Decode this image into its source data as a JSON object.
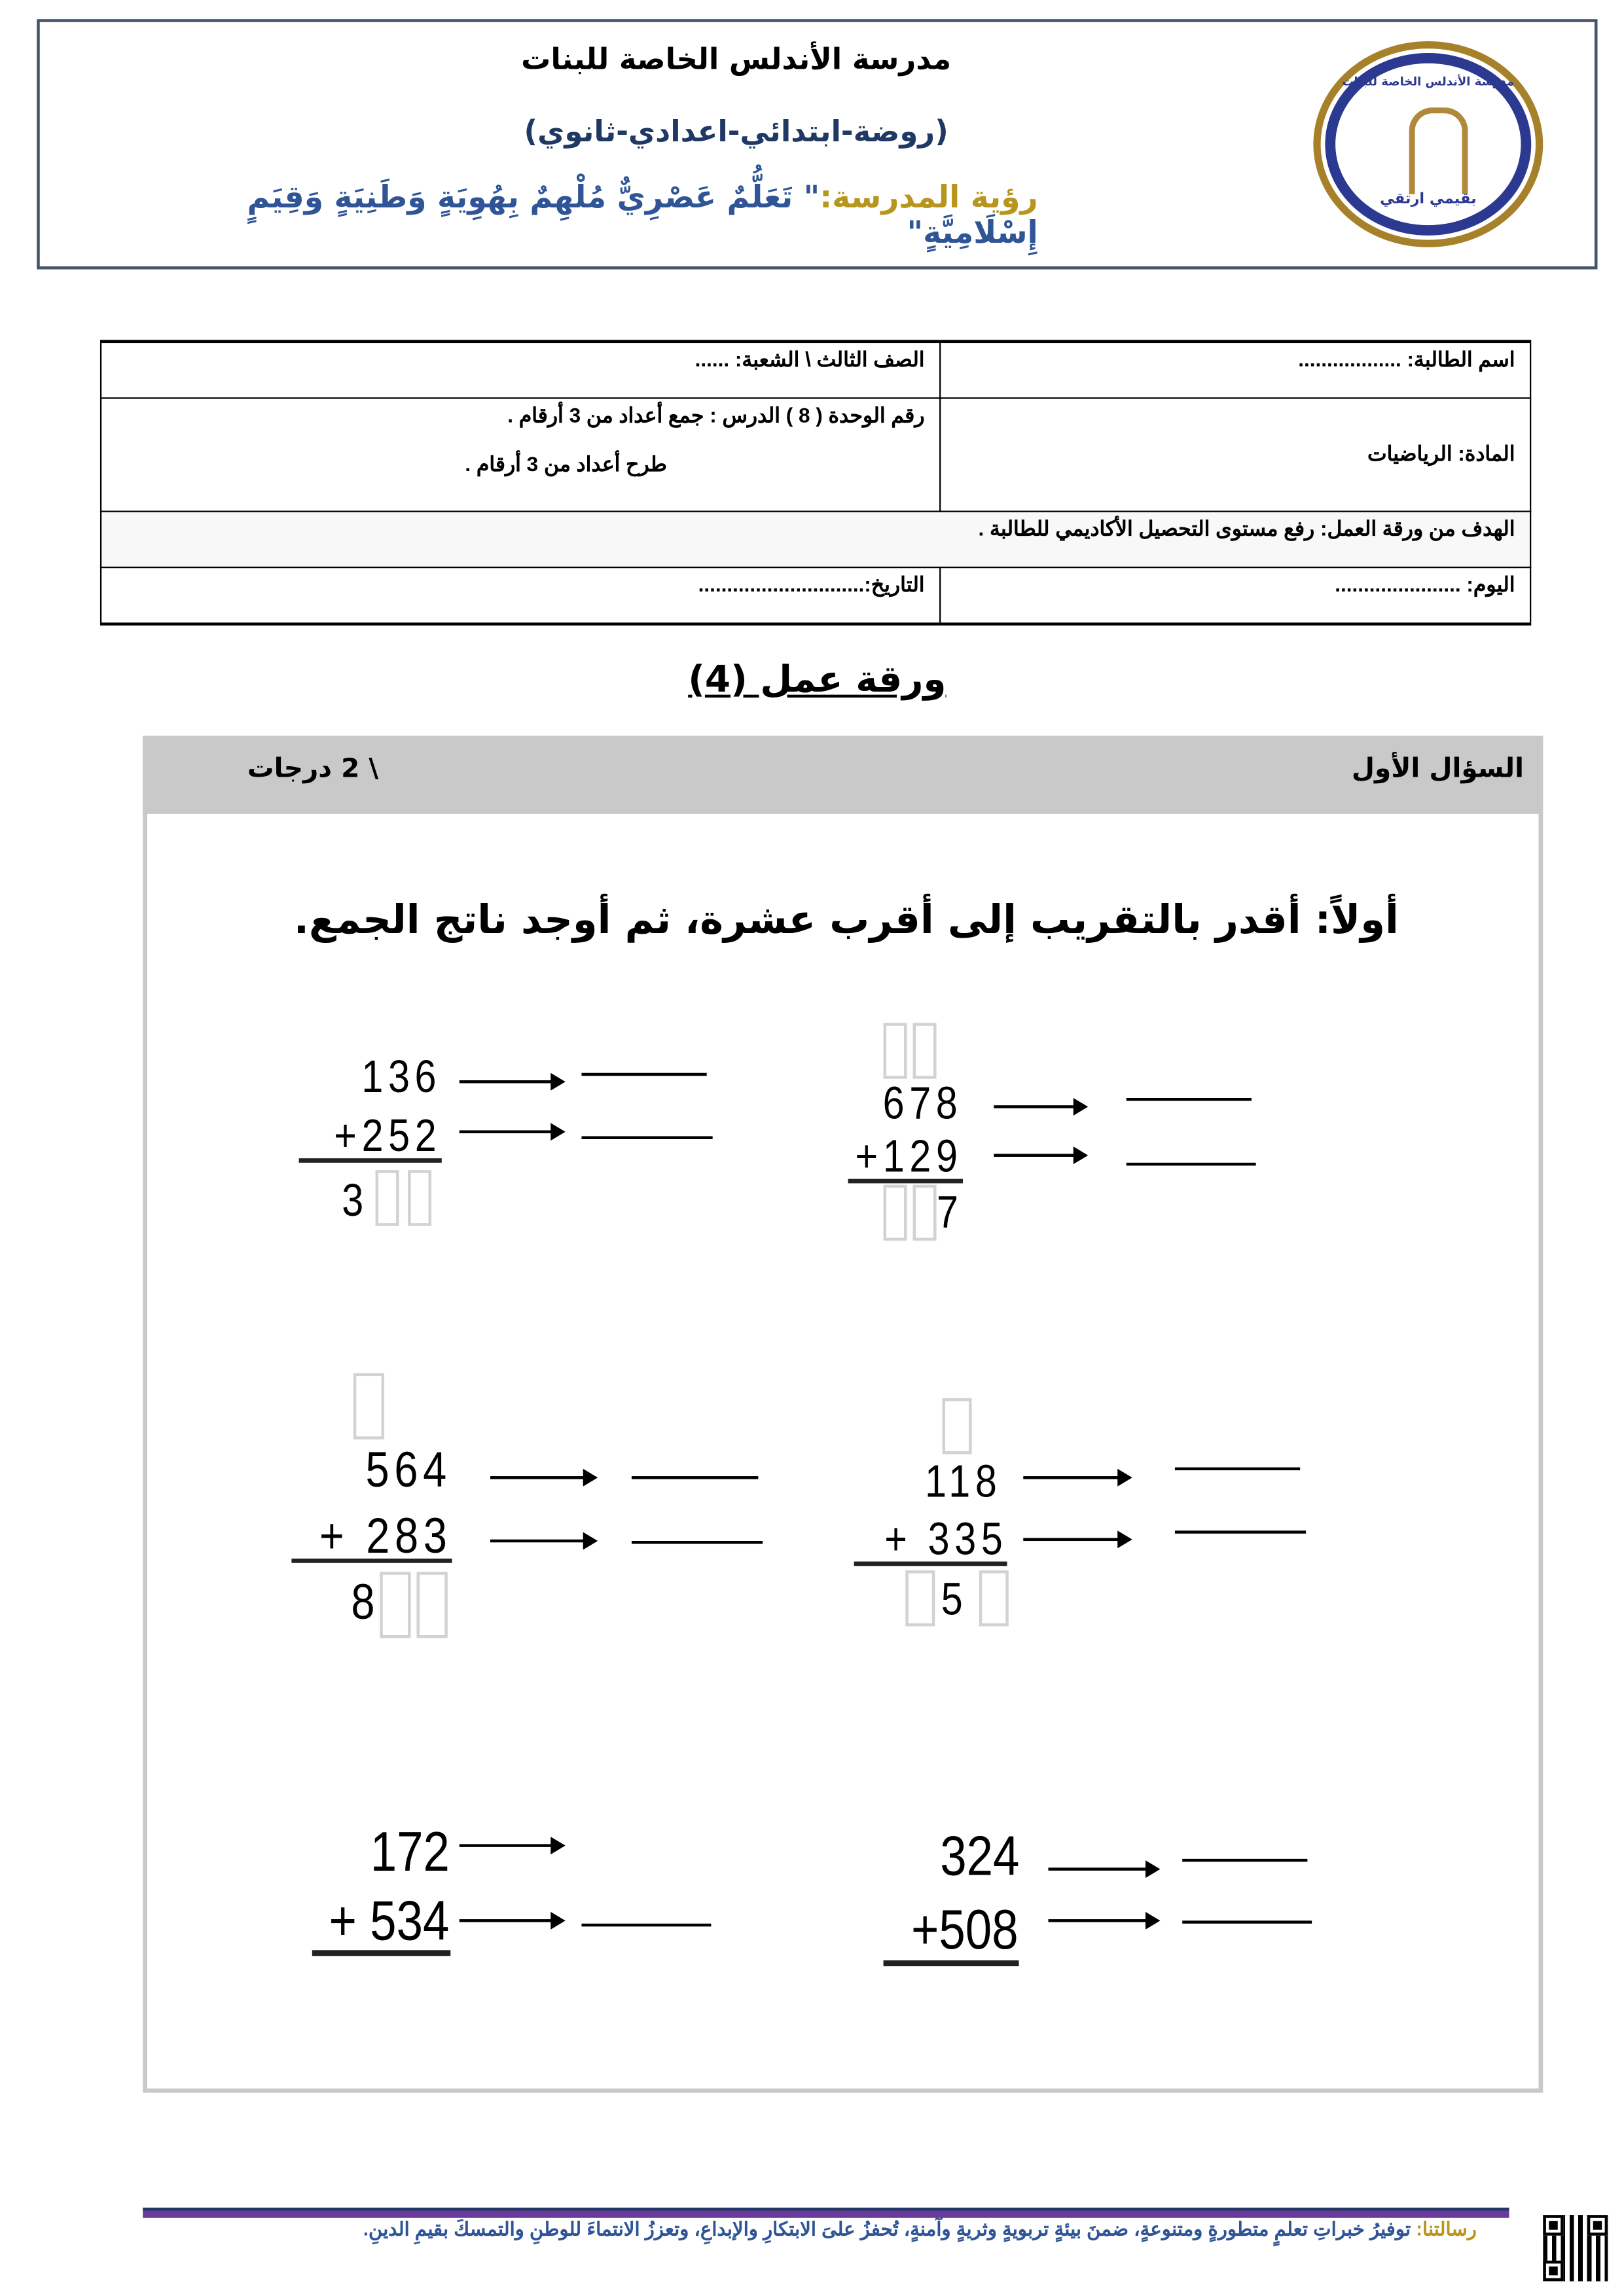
{
  "header": {
    "school_name": "مدرسة الأندلس الخاصة للبنات",
    "stages": "(روضة-ابتدائي-اعدادي-ثانوي)",
    "vision_label": "رؤية المدرسة:",
    "vision_text": "\" تَعَلُّمٌ عَصْرِيٌّ مُلْهِمٌ بِهُوِيَةٍ وَطَنِيَةٍ وَقِيَمٍ إِسْلَامِيَّةٍ\"",
    "logo_text": "مدرسة الأندلس الخاصة للبنات",
    "logo_motto": "بقيمي ارتقي",
    "colors": {
      "border": "#44546a",
      "gold": "#a7802a",
      "blue": "#2b3990",
      "vision_blue": "#2f5597"
    }
  },
  "info": {
    "student_name": "اسم الطالبة: ..................",
    "grade": "الصف الثالث \\ الشعبة: ......",
    "subject": "المادة: الرياضيات",
    "lesson_line1": "رقم الوحدة ( 8 )  الدرس : جمع أعداد من 3 أرقام  .",
    "lesson_line2": "طرح أعداد من 3 أرقام  .",
    "goal": "الهدف من ورقة العمل: رفع مستوى التحصيل الأكاديمي للطالبة .",
    "day": "اليوم: ......................",
    "date": "التاريخ:............................."
  },
  "worksheet_title": "ورقة عمل (4)",
  "question": {
    "title": "السؤال  الأول",
    "marks": "\\  2 درجات",
    "instruction": "أولاً: أقدر بالتقريب إلى أقرب عشرة، ثم أوجد ناتج الجمع.",
    "problems": [
      {
        "top": "136",
        "addend": "+252",
        "result": "3"
      },
      {
        "top": "678",
        "addend": "+129",
        "result": "7"
      },
      {
        "top": "564",
        "addend": "+ 283",
        "result": "8"
      },
      {
        "top": "118",
        "addend": "+ 335",
        "result": "5"
      },
      {
        "top": "172",
        "addend": "+ 534"
      },
      {
        "top": "324",
        "addend": "+508"
      }
    ]
  },
  "footer": {
    "label": "رسالتنا:",
    "text": " توفيرُ خبراتِ تعلمٍ متطورةٍ ومتنوعةٍ، ضمنَ بيئةٍ تربويةٍ وثريةٍ وآمنةٍ، تُحفزُ علىَ الابتكارِ والإبداعِ، وتعززُ الانتماءَ للوطنِ والتمسكَ بقيمِ الدينِ."
  }
}
